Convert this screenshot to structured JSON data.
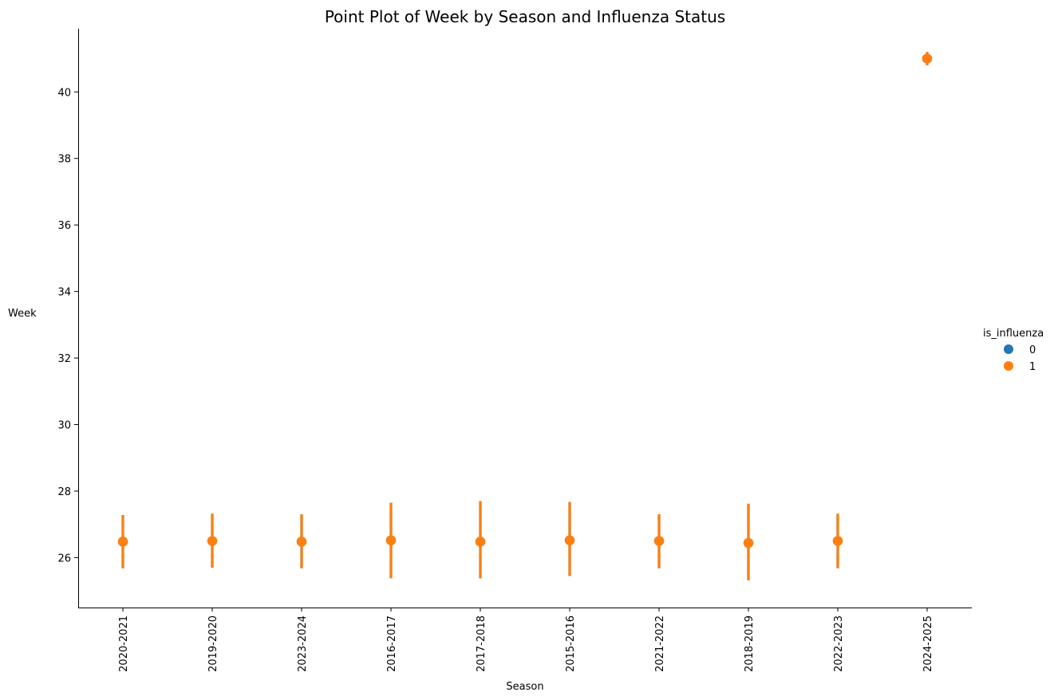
{
  "chart_data": {
    "type": "pointplot",
    "title": "Point Plot of Week by Season and Influenza Status",
    "xlabel": "Season",
    "ylabel": "Week",
    "categories": [
      "2020-2021",
      "2019-2020",
      "2023-2024",
      "2016-2017",
      "2017-2018",
      "2015-2016",
      "2021-2022",
      "2018-2019",
      "2022-2023",
      "2024-2025"
    ],
    "yticks": [
      26,
      28,
      30,
      32,
      34,
      36,
      38,
      40
    ],
    "ylim": [
      24.5,
      41.9
    ],
    "grid": false,
    "legend": {
      "title": "is_influenza",
      "placement": "right",
      "entries": [
        {
          "label": "0",
          "color": "#1f77b4"
        },
        {
          "label": "1",
          "color": "#ff7f0e"
        }
      ]
    },
    "series": [
      {
        "name": "0",
        "color": "#1f77b4",
        "values": [
          26.48,
          26.5,
          26.48,
          26.52,
          26.48,
          26.52,
          26.5,
          26.44,
          26.5,
          41.0
        ],
        "ci_low": [
          25.68,
          25.7,
          25.68,
          25.38,
          25.38,
          25.45,
          25.68,
          25.32,
          25.68,
          40.8
        ],
        "ci_high": [
          27.28,
          27.32,
          27.3,
          27.65,
          27.7,
          27.67,
          27.3,
          27.62,
          27.32,
          41.2
        ]
      },
      {
        "name": "1",
        "color": "#ff7f0e",
        "values": [
          26.48,
          26.5,
          26.48,
          26.52,
          26.48,
          26.52,
          26.5,
          26.44,
          26.5,
          41.0
        ],
        "ci_low": [
          25.68,
          25.7,
          25.68,
          25.38,
          25.38,
          25.45,
          25.68,
          25.32,
          25.68,
          40.8
        ],
        "ci_high": [
          27.28,
          27.32,
          27.3,
          27.65,
          27.7,
          27.67,
          27.3,
          27.62,
          27.32,
          41.2
        ]
      }
    ]
  }
}
